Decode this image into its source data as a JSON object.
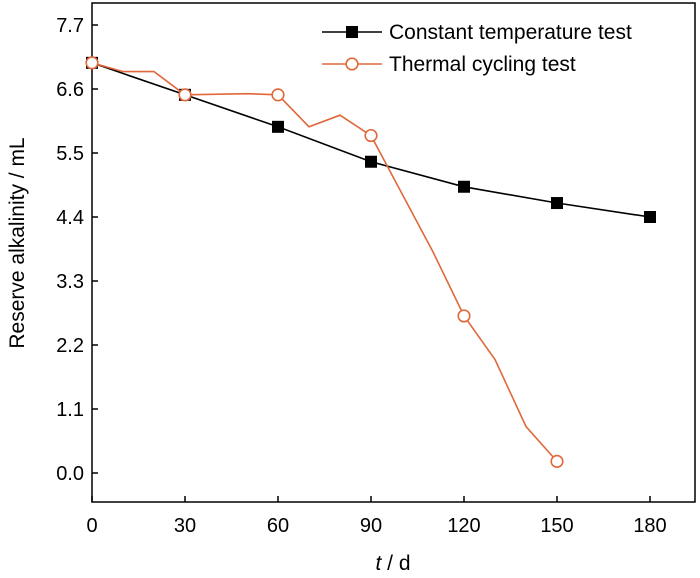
{
  "chart_data": {
    "type": "line",
    "xlabel_var": "t",
    "xlabel_unit": " / d",
    "ylabel": "Reserve alkalinity / mL",
    "xlim": [
      0,
      195
    ],
    "ylim": [
      -0.5,
      7.75
    ],
    "xticks": [
      0,
      30,
      60,
      90,
      120,
      150,
      180
    ],
    "yticks": [
      "0.0",
      "1.1",
      "2.2",
      "3.3",
      "4.4",
      "5.5",
      "6.6",
      "7.7"
    ],
    "grid": false,
    "legend_position": "top-right",
    "series": [
      {
        "name": "Constant temperature test",
        "color": "#000000",
        "marker": "filled-square",
        "line_points": [
          [
            0,
            7.05
          ],
          [
            30,
            6.5
          ],
          [
            60,
            5.95
          ],
          [
            90,
            5.35
          ],
          [
            120,
            4.92
          ],
          [
            150,
            4.64
          ],
          [
            180,
            4.4
          ]
        ],
        "marker_points": [
          [
            0,
            7.05
          ],
          [
            30,
            6.5
          ],
          [
            60,
            5.95
          ],
          [
            90,
            5.35
          ],
          [
            120,
            4.92
          ],
          [
            150,
            4.64
          ],
          [
            180,
            4.4
          ]
        ]
      },
      {
        "name": "Thermal cycling test",
        "color": "#e0683a",
        "marker": "open-circle",
        "line_points": [
          [
            0,
            7.05
          ],
          [
            10,
            6.9
          ],
          [
            20,
            6.9
          ],
          [
            30,
            6.5
          ],
          [
            50,
            6.52
          ],
          [
            60,
            6.5
          ],
          [
            70,
            5.95
          ],
          [
            80,
            6.15
          ],
          [
            90,
            5.8
          ],
          [
            100,
            4.8
          ],
          [
            110,
            3.8
          ],
          [
            120,
            2.7
          ],
          [
            130,
            1.95
          ],
          [
            140,
            0.8
          ],
          [
            150,
            0.2
          ]
        ],
        "marker_points": [
          [
            0,
            7.05
          ],
          [
            30,
            6.5
          ],
          [
            60,
            6.5
          ],
          [
            90,
            5.8
          ],
          [
            120,
            2.7
          ],
          [
            150,
            0.2
          ]
        ]
      }
    ]
  }
}
